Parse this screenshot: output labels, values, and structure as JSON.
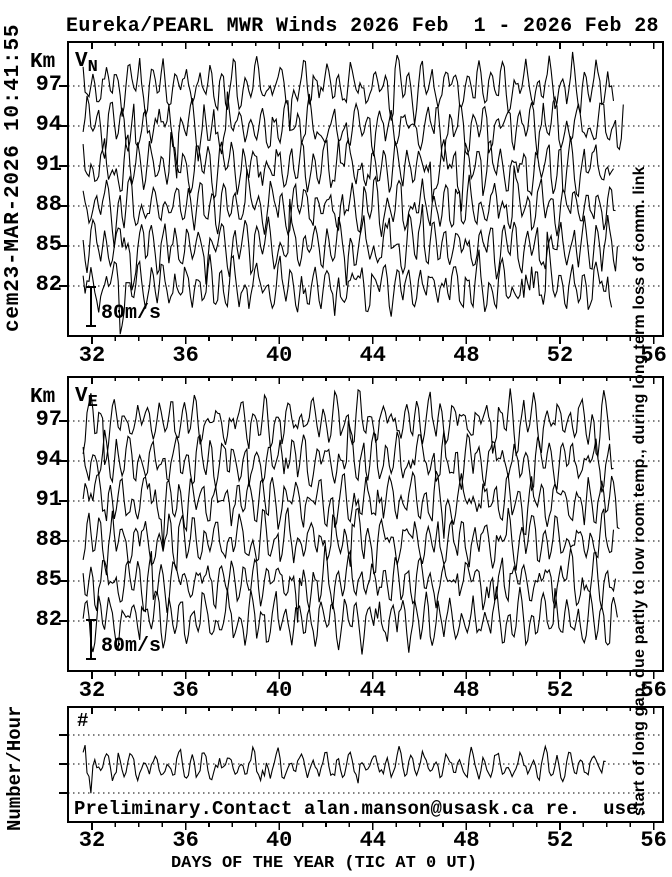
{
  "title": "Eureka/PEARL MWR Winds 2026 Feb  1 - 2026 Feb 28",
  "left_timestamp": "cem23-MAR-2026 10:41:55",
  "right_annotation": "start of long gap, due partly to low room temp., during long term loss of comm. link",
  "footer_note": "Preliminary.Contact alan.manson@usask.ca re.  use.",
  "x_axis_title": "DAYS OF THE YEAR (TIC AT 0 UT)",
  "chart_data": {
    "type": "line",
    "x_ticks": [
      32,
      36,
      40,
      44,
      48,
      52,
      56
    ],
    "x_minor_step_days": 1,
    "x_range_days": [
      31.0,
      56.5
    ],
    "data_start_day": 31.62,
    "data_end_day": 54.5,
    "trace_color": "#000000",
    "background": "#ffffff",
    "grid_style": "dotted horizontal lines at each altitude / count level",
    "panels": [
      {
        "name": "V_N",
        "label": "V",
        "label_sub": "N",
        "axis_label": "Km",
        "y_ticks_km": [
          97,
          94,
          91,
          88,
          85,
          82
        ],
        "units": "m/s",
        "scale_bar": {
          "label": "80m/s",
          "meters_per_second": 80
        },
        "description": "Northward MWR wind fluctuations vs day-of-year at six altitudes; dense noisy oscillations of roughly +/-60 m/s about each altitude baseline, data ending near day 54.5",
        "series": [
          {
            "altitude_km": 97,
            "seed": 101
          },
          {
            "altitude_km": 94,
            "seed": 102
          },
          {
            "altitude_km": 91,
            "seed": 103
          },
          {
            "altitude_km": 88,
            "seed": 104
          },
          {
            "altitude_km": 85,
            "seed": 105
          },
          {
            "altitude_km": 82,
            "seed": 106
          }
        ]
      },
      {
        "name": "V_E",
        "label": "V",
        "label_sub": "E",
        "axis_label": "Km",
        "y_ticks_km": [
          97,
          94,
          91,
          88,
          85,
          82
        ],
        "units": "m/s",
        "scale_bar": {
          "label": "80m/s",
          "meters_per_second": 80
        },
        "description": "Eastward MWR wind fluctuations vs day-of-year at six altitudes; dense noisy oscillations of roughly +/-60 m/s about each altitude baseline, data ending near day 54.5",
        "series": [
          {
            "altitude_km": 97,
            "seed": 201
          },
          {
            "altitude_km": 94,
            "seed": 202
          },
          {
            "altitude_km": 91,
            "seed": 203
          },
          {
            "altitude_km": 88,
            "seed": 204
          },
          {
            "altitude_km": 85,
            "seed": 205
          },
          {
            "altitude_km": 82,
            "seed": 206
          }
        ]
      },
      {
        "name": "counts",
        "label": "#",
        "axis_label": "Number/Hour",
        "gridline_count": 3,
        "description": "Hourly acceptance-count record oscillating with a daily cycle about the middle gridline, same time span as the wind panels",
        "series": [
          {
            "seed": 301
          }
        ]
      }
    ]
  }
}
